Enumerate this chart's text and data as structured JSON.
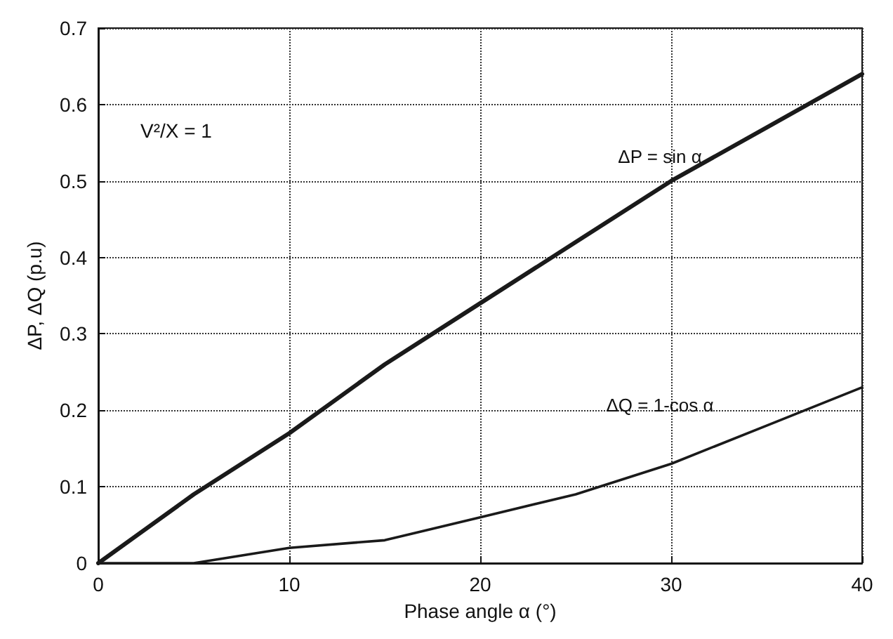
{
  "chart_data": {
    "type": "line",
    "xlabel": "Phase angle α (°)",
    "ylabel": "ΔP, ΔQ (p.u)",
    "x": [
      0,
      5,
      10,
      15,
      20,
      25,
      30,
      35,
      40
    ],
    "series": [
      {
        "name": "ΔP = sin α",
        "color": "#1a1a1a",
        "values": [
          0,
          0.09,
          0.17,
          0.26,
          0.34,
          0.42,
          0.5,
          0.57,
          0.64
        ]
      },
      {
        "name": "ΔQ = 1-cos α",
        "color": "#1a1a1a",
        "values": [
          0,
          0.0,
          0.02,
          0.03,
          0.06,
          0.09,
          0.13,
          0.18,
          0.23
        ]
      }
    ],
    "xlim": [
      0,
      40
    ],
    "xticks": [
      0,
      10,
      20,
      30,
      40
    ],
    "ylim": [
      0,
      0.7
    ],
    "yticks": [
      0,
      0.1,
      0.2,
      0.3,
      0.4,
      0.5,
      0.6,
      0.7
    ],
    "annotations": [
      "V²/X = 1"
    ],
    "grid": true,
    "marker": "none",
    "line_style": "solid"
  }
}
